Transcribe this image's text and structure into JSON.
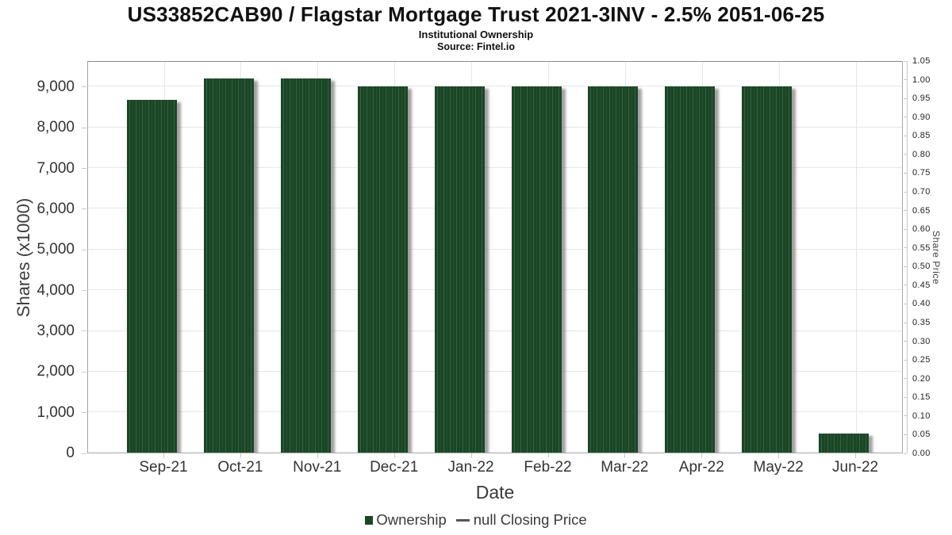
{
  "header": {
    "title": "US33852CAB90 / Flagstar Mortgage Trust 2021-3INV - 2.5% 2051-06-25",
    "subtitle": "Institutional Ownership",
    "source": "Source: Fintel.io"
  },
  "chart_data": {
    "type": "bar",
    "title": "US33852CAB90 / Flagstar Mortgage Trust 2021-3INV - 2.5% 2051-06-25",
    "subtitle": "Institutional Ownership",
    "source": "Source: Fintel.io",
    "categories": [
      "Sep-21",
      "Oct-21",
      "Nov-21",
      "Dec-21",
      "Jan-22",
      "Feb-22",
      "Mar-22",
      "Apr-22",
      "May-22",
      "Jun-22"
    ],
    "series": [
      {
        "name": "Ownership",
        "type": "bar",
        "color": "#1b4626",
        "values": [
          8670,
          9190,
          9190,
          9000,
          8990,
          8990,
          8990,
          8990,
          8990,
          470
        ]
      }
    ],
    "secondary_series": {
      "name": "null Closing Price",
      "type": "line",
      "color": "#555555",
      "values": []
    },
    "xlabel": "Date",
    "ylabel": "Shares (x1000)",
    "y2label": "Share Price",
    "ylim": [
      0,
      9642
    ],
    "ytick_step": 1000,
    "ytick_max": 9000,
    "y2lim": [
      0,
      1.05
    ],
    "y2tick_step": 0.05,
    "grid": true,
    "legend_position": "bottom-center"
  },
  "legend": {
    "items": [
      {
        "label": "Ownership",
        "swatch": "square",
        "color": "#1b4626"
      },
      {
        "label": "null Closing Price",
        "swatch": "line",
        "color": "#555555"
      }
    ]
  },
  "colors": {
    "bar": "#1b4626",
    "bar_stripe": "#346343",
    "grid": "#e6e6e6",
    "axis_border": "#a6a6a6",
    "tick": "#c9c9c9",
    "text_dark": "#333333",
    "text_mid": "#555555"
  }
}
